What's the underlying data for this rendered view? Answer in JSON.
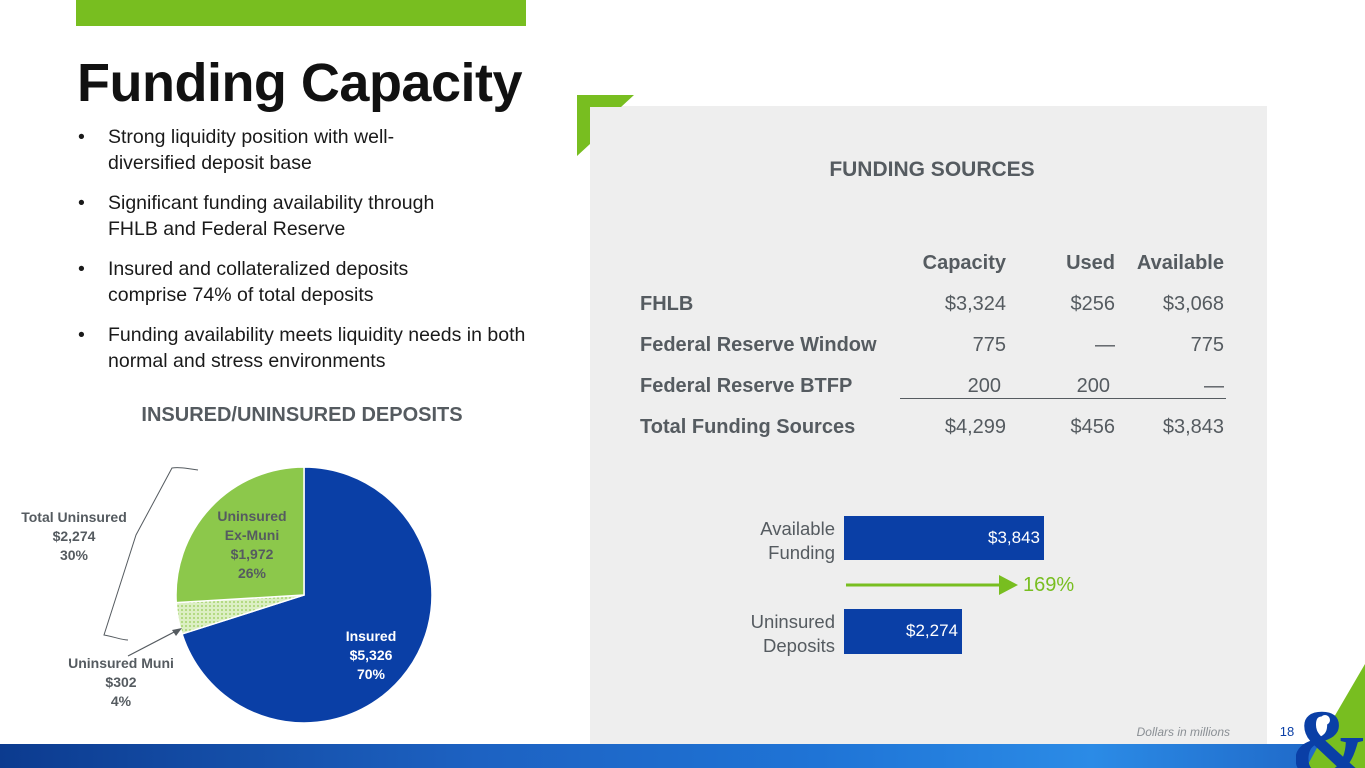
{
  "page": {
    "title": "Funding Capacity",
    "number": "18",
    "footnote": "Dollars in millions"
  },
  "bullets": [
    "Strong liquidity position with well-diversified deposit base",
    "Significant funding availability through FHLB and Federal Reserve",
    "Insured and collateralized deposits comprise 74% of total deposits",
    "Funding availability meets liquidity needs in both normal and stress environments"
  ],
  "deposits_chart": {
    "title": "INSURED/UNINSURED DEPOSITS",
    "total_uninsured": {
      "label": "Total Uninsured",
      "value": "$2,274",
      "pct": "30%"
    },
    "slices": [
      {
        "name": "Insured",
        "label": "Insured",
        "value": "$5,326",
        "pct": "70%",
        "amount": 5326,
        "color": "#0a3fa6"
      },
      {
        "name": "Uninsured Muni",
        "label": "Uninsured Muni",
        "value": "$302",
        "pct": "4%",
        "amount": 302,
        "color": "#c8e6a0"
      },
      {
        "name": "Uninsured Ex-Muni",
        "label_1": "Uninsured",
        "label_2": "Ex-Muni",
        "value": "$1,972",
        "pct": "26%",
        "amount": 1972,
        "color": "#8cc84b"
      }
    ]
  },
  "funding": {
    "title": "FUNDING SOURCES",
    "headers": {
      "capacity": "Capacity",
      "used": "Used",
      "available": "Available"
    },
    "rows": [
      {
        "label": "FHLB",
        "capacity": "$3,324",
        "used": "$256",
        "available": "$3,068"
      },
      {
        "label": "Federal Reserve Window",
        "capacity": "775",
        "used": "—",
        "available": "775"
      },
      {
        "label": "Federal Reserve BTFP",
        "capacity": "200",
        "used": "200",
        "available": "—"
      },
      {
        "label": "Total Funding Sources",
        "capacity": "$4,299",
        "used": "$456",
        "available": "$3,843"
      }
    ]
  },
  "coverage_chart": {
    "bars": [
      {
        "label_1": "Available",
        "label_2": "Funding",
        "value_label": "$3,843",
        "value": 3843
      },
      {
        "label_1": "Uninsured",
        "label_2": "Deposits",
        "value_label": "$2,274",
        "value": 2274
      }
    ],
    "ratio_label": "169%",
    "colors": {
      "bar": "#0a3fa6",
      "arrow": "#78be20"
    }
  },
  "colors": {
    "accent_green": "#78be20",
    "brand_blue": "#0a3fa6",
    "text_gray": "#555b60"
  }
}
